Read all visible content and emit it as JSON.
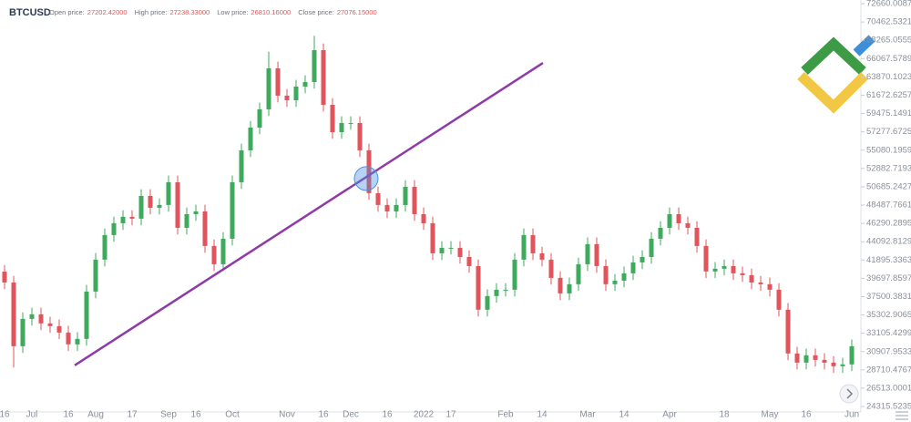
{
  "chart_data": {
    "type": "candlestick",
    "symbol": "BTCUSD",
    "header": [
      {
        "label": "Open price:",
        "value": "27202.42000"
      },
      {
        "label": "High price:",
        "value": "27238.33000"
      },
      {
        "label": "Low price:",
        "value": "26810.16000"
      },
      {
        "label": "Close price:",
        "value": "27076.15000"
      }
    ],
    "up_color": "#3daa5c",
    "down_color": "#e2545b",
    "categories": [
      "16",
      null,
      null,
      "Jul",
      null,
      null,
      null,
      "16",
      null,
      null,
      "Aug",
      null,
      null,
      null,
      "17",
      null,
      null,
      null,
      "Sep",
      null,
      null,
      "16",
      null,
      null,
      null,
      "Oct",
      null,
      null,
      null,
      null,
      null,
      "Nov",
      null,
      null,
      null,
      "16",
      null,
      null,
      "Dec",
      null,
      null,
      null,
      "16",
      null,
      null,
      null,
      "2022",
      null,
      null,
      "17",
      null,
      null,
      null,
      null,
      null,
      "Feb",
      null,
      null,
      null,
      "14",
      null,
      null,
      null,
      null,
      "Mar",
      null,
      null,
      null,
      "14",
      null,
      null,
      null,
      null,
      "Apr",
      null,
      null,
      null,
      null,
      null,
      "18",
      null,
      null,
      null,
      null,
      "May",
      null,
      null,
      null,
      "16",
      null,
      null,
      null,
      null,
      "Jun"
    ],
    "open": [
      40500,
      39200,
      31550,
      34830,
      35380,
      34290,
      33960,
      33190,
      31770,
      32430,
      38110,
      41940,
      44890,
      46310,
      47080,
      46860,
      49590,
      48170,
      48500,
      51230,
      45760,
      47400,
      47730,
      43580,
      41390,
      44450,
      51230,
      55060,
      57790,
      59980,
      64900,
      61620,
      61070,
      62710,
      63260,
      67080,
      60520,
      57240,
      58340,
      58340,
      55060,
      49920,
      48500,
      47730,
      48500,
      50680,
      47400,
      46310,
      42700,
      43360,
      43360,
      42260,
      41170,
      35930,
      37570,
      38330,
      38330,
      41940,
      44890,
      42700,
      41940,
      39750,
      37890,
      38990,
      41390,
      43800,
      41170,
      38990,
      39420,
      40300,
      41610,
      42260,
      44450,
      45760,
      47400,
      46310,
      45760,
      43580,
      40520,
      40850,
      41170,
      40300,
      40080,
      39200,
      38990,
      38330,
      35930,
      30680,
      29580,
      30460,
      29910,
      29580,
      29150,
      29370
    ],
    "high": [
      41300,
      40000,
      35630,
      36180,
      36180,
      35090,
      34760,
      33990,
      33230,
      38910,
      42740,
      45690,
      47110,
      47880,
      47880,
      50390,
      50390,
      49300,
      52030,
      52030,
      48200,
      48530,
      48530,
      44380,
      45250,
      52030,
      55860,
      58590,
      60780,
      66900,
      65700,
      62420,
      63510,
      64060,
      68800,
      67880,
      61320,
      59140,
      59140,
      59140,
      55860,
      50720,
      49300,
      49300,
      51480,
      51480,
      48200,
      47110,
      44160,
      44160,
      44160,
      43060,
      41970,
      38370,
      39130,
      39130,
      42740,
      45690,
      45690,
      43500,
      42740,
      40550,
      39790,
      42190,
      44600,
      44600,
      41970,
      40220,
      41100,
      42410,
      43060,
      45250,
      46560,
      48200,
      48200,
      47110,
      46560,
      44380,
      41650,
      41970,
      41970,
      41100,
      40880,
      40000,
      39790,
      39130,
      36730,
      31480,
      31260,
      31260,
      30710,
      30380,
      30170,
      32350
    ],
    "low": [
      38400,
      29000,
      30750,
      34030,
      33490,
      33160,
      32390,
      30970,
      30970,
      31630,
      37310,
      41140,
      44090,
      45510,
      46060,
      46060,
      47370,
      47370,
      47700,
      44960,
      44960,
      46600,
      42780,
      40590,
      40590,
      43650,
      50430,
      54260,
      56990,
      59180,
      60820,
      60270,
      60270,
      61910,
      62460,
      59720,
      56440,
      56440,
      57540,
      54260,
      49120,
      47700,
      46930,
      46930,
      47700,
      46600,
      45510,
      41900,
      41900,
      42560,
      41460,
      40370,
      35130,
      35130,
      36770,
      37530,
      37530,
      41140,
      41900,
      41140,
      38950,
      37090,
      37090,
      38190,
      40590,
      40370,
      38190,
      38190,
      38620,
      39500,
      40810,
      41460,
      43650,
      44960,
      45510,
      44960,
      42780,
      39720,
      39720,
      40050,
      39500,
      39280,
      38400,
      38190,
      37530,
      35130,
      29880,
      28780,
      28780,
      29110,
      28780,
      28350,
      28350,
      28570
    ],
    "close": [
      39200,
      31550,
      34830,
      35380,
      34290,
      33960,
      33190,
      31770,
      32430,
      38110,
      41940,
      44890,
      46310,
      47080,
      46860,
      49590,
      48170,
      48500,
      51230,
      45760,
      47400,
      47730,
      43580,
      41390,
      44450,
      51230,
      55060,
      57790,
      59980,
      64900,
      61620,
      61070,
      62710,
      63260,
      67080,
      60520,
      57240,
      58340,
      58340,
      55060,
      49920,
      48500,
      47730,
      48500,
      50680,
      47400,
      46310,
      42700,
      43360,
      43360,
      42260,
      41170,
      35930,
      37570,
      38330,
      38330,
      41940,
      44890,
      42700,
      41940,
      39750,
      37890,
      38990,
      41390,
      43800,
      41170,
      38990,
      39420,
      40300,
      41610,
      42260,
      44450,
      45760,
      47400,
      46310,
      45760,
      43580,
      40520,
      40850,
      41170,
      40300,
      40080,
      39200,
      38990,
      38330,
      35930,
      30680,
      29580,
      30460,
      29910,
      29580,
      29150,
      29370,
      31550
    ],
    "trendline": {
      "x": [
        7.7,
        59.1
      ],
      "y": [
        29260,
        65550
      ],
      "color": "#8e3aa8"
    },
    "highlight": {
      "x": 39.7,
      "y": 51670,
      "color": "#4a90e2"
    },
    "ylim": [
      23660,
      73100
    ],
    "yticks": [
      {
        "value": 72660.0087,
        "label": "72660.00870"
      },
      {
        "value": 70462.5321,
        "label": "70462.53210"
      },
      {
        "value": 68265.0555,
        "label": "68265.05550"
      },
      {
        "value": 66067.5789,
        "label": "66067.57890"
      },
      {
        "value": 63870.1023,
        "label": "63870.10230"
      },
      {
        "value": 61672.6257,
        "label": "61672.62570"
      },
      {
        "value": 59475.1491,
        "label": "59475.14910"
      },
      {
        "value": 57277.6725,
        "label": "57277.67250"
      },
      {
        "value": 55080.1959,
        "label": "55080.19590"
      },
      {
        "value": 52882.7193,
        "label": "52882.71930"
      },
      {
        "value": 50685.2427,
        "label": "50685.24270"
      },
      {
        "value": 48487.7661,
        "label": "48487.76610"
      },
      {
        "value": 46290.2895,
        "label": "46290.28950"
      },
      {
        "value": 44092.8129,
        "label": "44092.81290"
      },
      {
        "value": 41895.3363,
        "label": "41895.33630"
      },
      {
        "value": 39697.8597,
        "label": "39697.85970"
      },
      {
        "value": 37500.3831,
        "label": "37500.38310"
      },
      {
        "value": 35302.9065,
        "label": "35302.90650"
      },
      {
        "value": 33105.4299,
        "label": "33105.42990"
      },
      {
        "value": 30907.9533,
        "label": "30907.95330"
      },
      {
        "value": 28710.4767,
        "label": "28710.47670"
      },
      {
        "value": 26513.0001,
        "label": "26513.00010"
      },
      {
        "value": 24315.5235,
        "label": "24315.52350"
      }
    ]
  }
}
